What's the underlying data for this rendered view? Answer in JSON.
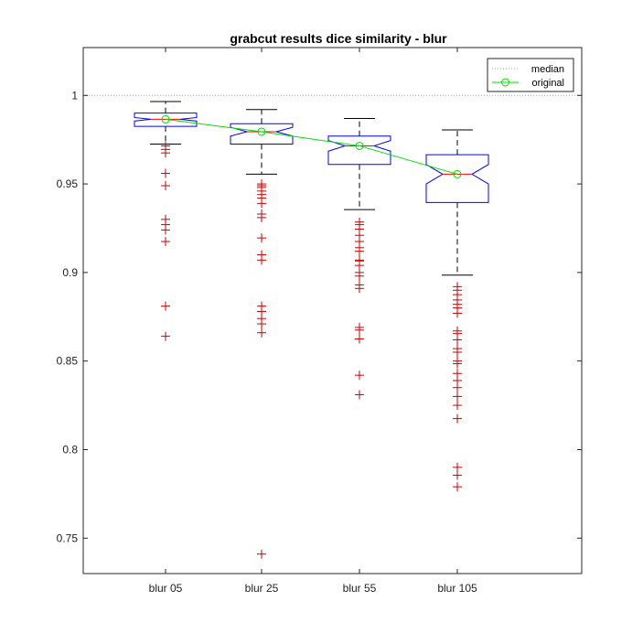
{
  "chart_data": {
    "type": "box",
    "title": "grabcut results dice similarity - blur",
    "xlabel": "",
    "ylabel": "",
    "categories": [
      "blur 05",
      "blur 25",
      "blur 55",
      "blur 105"
    ],
    "ylim": [
      0.73,
      1.027
    ],
    "yticks": [
      0.75,
      0.8,
      0.85,
      0.9,
      0.95,
      1
    ],
    "ytick_labels": [
      "0.75",
      "0.8",
      "0.85",
      "0.9",
      "0.95",
      "1"
    ],
    "reference_line": {
      "value": 1,
      "style": "dotted",
      "color": "#a0a0a0"
    },
    "boxes": [
      {
        "category": "blur 05",
        "q1": 0.9825,
        "median": 0.9865,
        "q3": 0.99,
        "notch_low": 0.9855,
        "notch_high": 0.9875,
        "whisker_low": 0.9725,
        "whisker_high": 0.9965,
        "outliers": [
          0.9715,
          0.9695,
          0.9675,
          0.956,
          0.949,
          0.93,
          0.927,
          0.924,
          0.9175,
          0.881,
          0.864
        ]
      },
      {
        "category": "blur 25",
        "q1": 0.9725,
        "median": 0.9795,
        "q3": 0.984,
        "notch_low": 0.977,
        "notch_high": 0.982,
        "whisker_low": 0.9555,
        "whisker_high": 0.992,
        "outliers": [
          0.95,
          0.949,
          0.948,
          0.946,
          0.944,
          0.942,
          0.939,
          0.933,
          0.931,
          0.9195,
          0.91,
          0.907,
          0.881,
          0.878,
          0.874,
          0.871,
          0.866,
          0.741
        ]
      },
      {
        "category": "blur 55",
        "q1": 0.961,
        "median": 0.9715,
        "q3": 0.977,
        "notch_low": 0.9685,
        "notch_high": 0.9745,
        "whisker_low": 0.9355,
        "whisker_high": 0.987,
        "outliers": [
          0.9285,
          0.927,
          0.9245,
          0.921,
          0.9175,
          0.914,
          0.912,
          0.907,
          0.9065,
          0.904,
          0.9,
          0.898,
          0.893,
          0.891,
          0.869,
          0.8675,
          0.8625,
          0.842,
          0.831
        ]
      },
      {
        "category": "blur 105",
        "q1": 0.9395,
        "median": 0.9555,
        "q3": 0.9665,
        "notch_low": 0.95,
        "notch_high": 0.961,
        "whisker_low": 0.8985,
        "whisker_high": 0.9805,
        "outliers": [
          0.892,
          0.89,
          0.8875,
          0.8845,
          0.882,
          0.88,
          0.877,
          0.867,
          0.8655,
          0.862,
          0.857,
          0.855,
          0.85,
          0.8485,
          0.843,
          0.839,
          0.835,
          0.83,
          0.825,
          0.8175,
          0.79,
          0.7855,
          0.779
        ]
      }
    ],
    "series": [
      {
        "name": "original",
        "values": [
          0.9865,
          0.9795,
          0.9715,
          0.9555
        ],
        "color": "#00e000",
        "marker": "circle"
      }
    ],
    "legend": {
      "placement": "top-right",
      "entries": [
        {
          "label": "median",
          "style": "dotted",
          "color": "#a0a0a0"
        },
        {
          "label": "original",
          "style": "line-circle",
          "color": "#00e000"
        }
      ]
    },
    "colors": {
      "box": "#0000ff",
      "median": "#ff0000",
      "whisker": "#000000",
      "outlier": "#cc0000",
      "axis": "#262626"
    },
    "grid": false
  }
}
